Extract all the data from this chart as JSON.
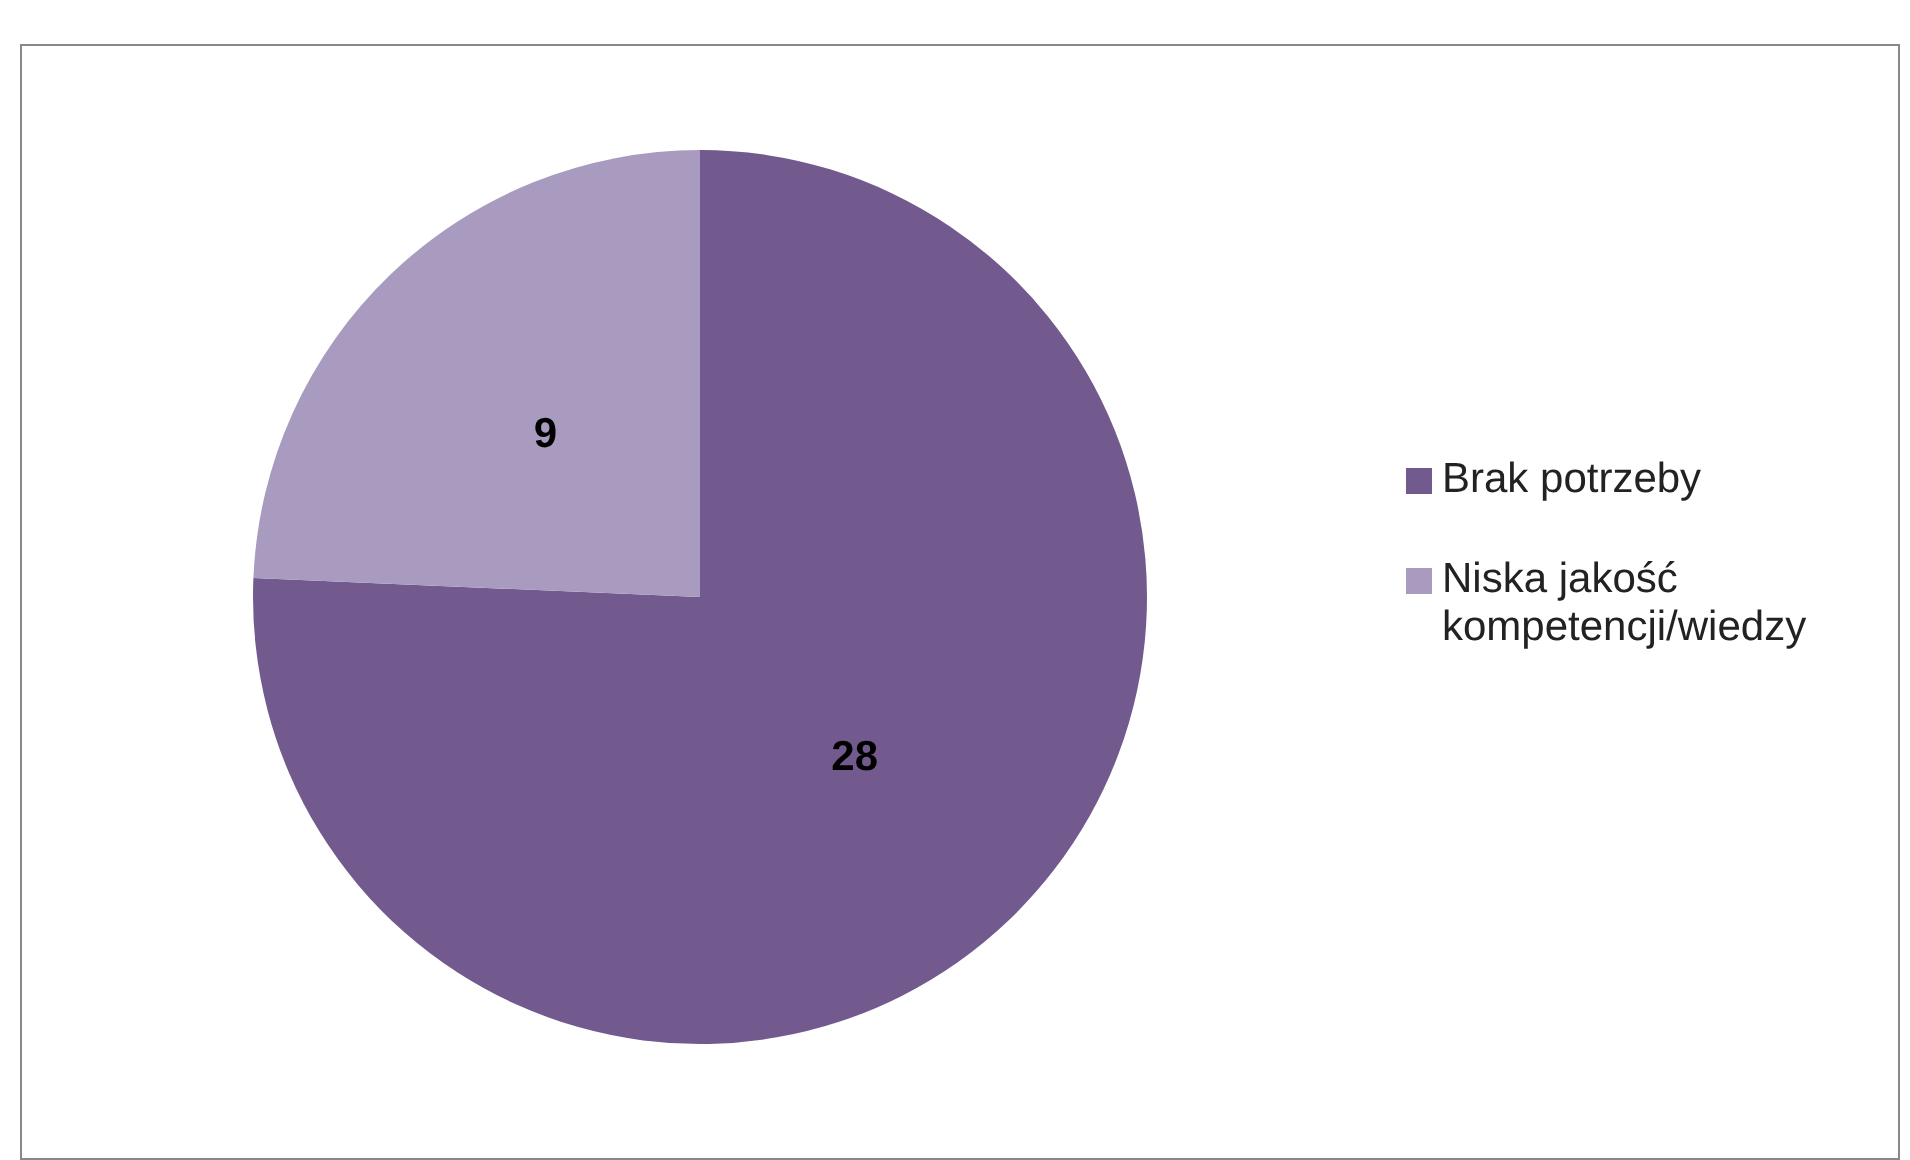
{
  "chart_data": {
    "type": "pie",
    "categories": [
      "Brak potrzeby",
      "Niska jakość kompetencji/wiedzy"
    ],
    "values": [
      28,
      9
    ],
    "colors": [
      "#725a8f",
      "#a99bbf"
    ],
    "data_labels": true,
    "legend": "right"
  }
}
